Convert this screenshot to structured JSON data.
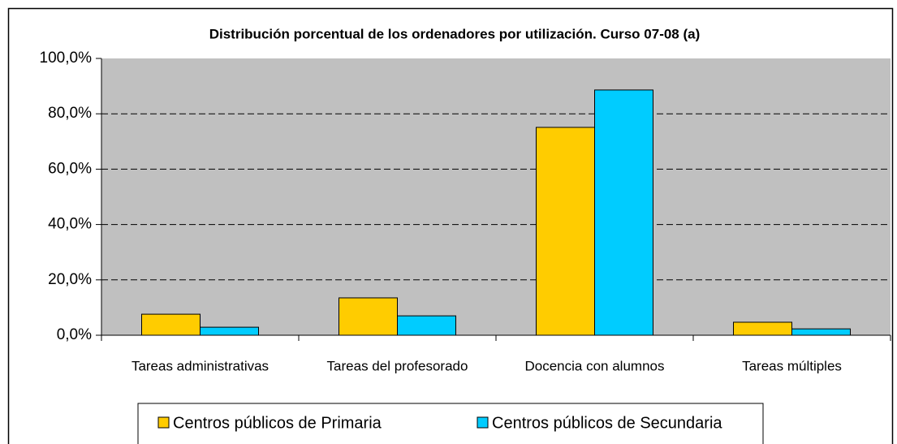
{
  "chart_data": {
    "type": "bar",
    "title": "Distribución porcentual de los ordenadores por utilización. Curso 07-08 (a)",
    "categories": [
      "Tareas administrativas",
      "Tareas del profesorado",
      "Docencia con alumnos",
      "Tareas múltiples"
    ],
    "series": [
      {
        "name": "Centros públicos de Primaria",
        "color": "#ffcc00",
        "values": [
          7.6,
          13.5,
          75.1,
          4.7
        ]
      },
      {
        "name": "Centros públicos de Secundaria",
        "color": "#00ccff",
        "values": [
          2.9,
          7.0,
          88.6,
          2.3
        ]
      }
    ],
    "ylim": [
      0,
      100
    ],
    "yticks": [
      {
        "value": 0,
        "label": "0,0%"
      },
      {
        "value": 20,
        "label": "20,0%"
      },
      {
        "value": 40,
        "label": "40,0%"
      },
      {
        "value": 60,
        "label": "60,0%"
      },
      {
        "value": 80,
        "label": "80,0%"
      },
      {
        "value": 100,
        "label": "100,0%"
      }
    ],
    "grid": true,
    "legend": "bottom"
  }
}
